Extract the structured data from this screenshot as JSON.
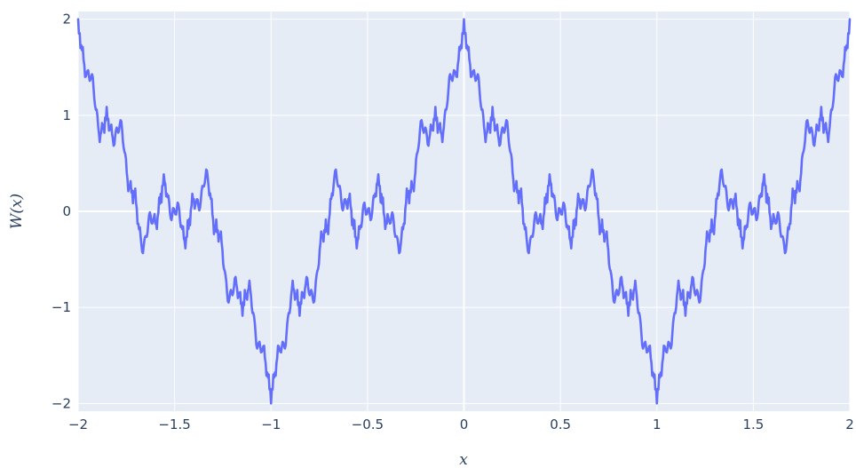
{
  "chart_data": {
    "type": "line",
    "title": "",
    "xlabel": "x",
    "ylabel": "W(x)",
    "xlim": [
      -2,
      2
    ],
    "ylim": [
      -2.08,
      2.08
    ],
    "x_ticks": [
      -2,
      -1.5,
      -1,
      -0.5,
      0,
      0.5,
      1,
      1.5,
      2
    ],
    "x_tick_labels": [
      "−2",
      "−1.5",
      "−1",
      "−0.5",
      "0",
      "0.5",
      "1",
      "1.5",
      "2"
    ],
    "y_ticks": [
      -2,
      -1,
      0,
      1,
      2
    ],
    "y_tick_labels": [
      "−2",
      "−1",
      "0",
      "1",
      "2"
    ],
    "grid": true,
    "plot_background": "#e5ecf6",
    "grid_color": "#ffffff",
    "series": [
      {
        "color": "#636efa",
        "function": "weierstrass",
        "a": 0.5,
        "b": 3,
        "terms": 14,
        "x_step": 0.004
      }
    ]
  }
}
